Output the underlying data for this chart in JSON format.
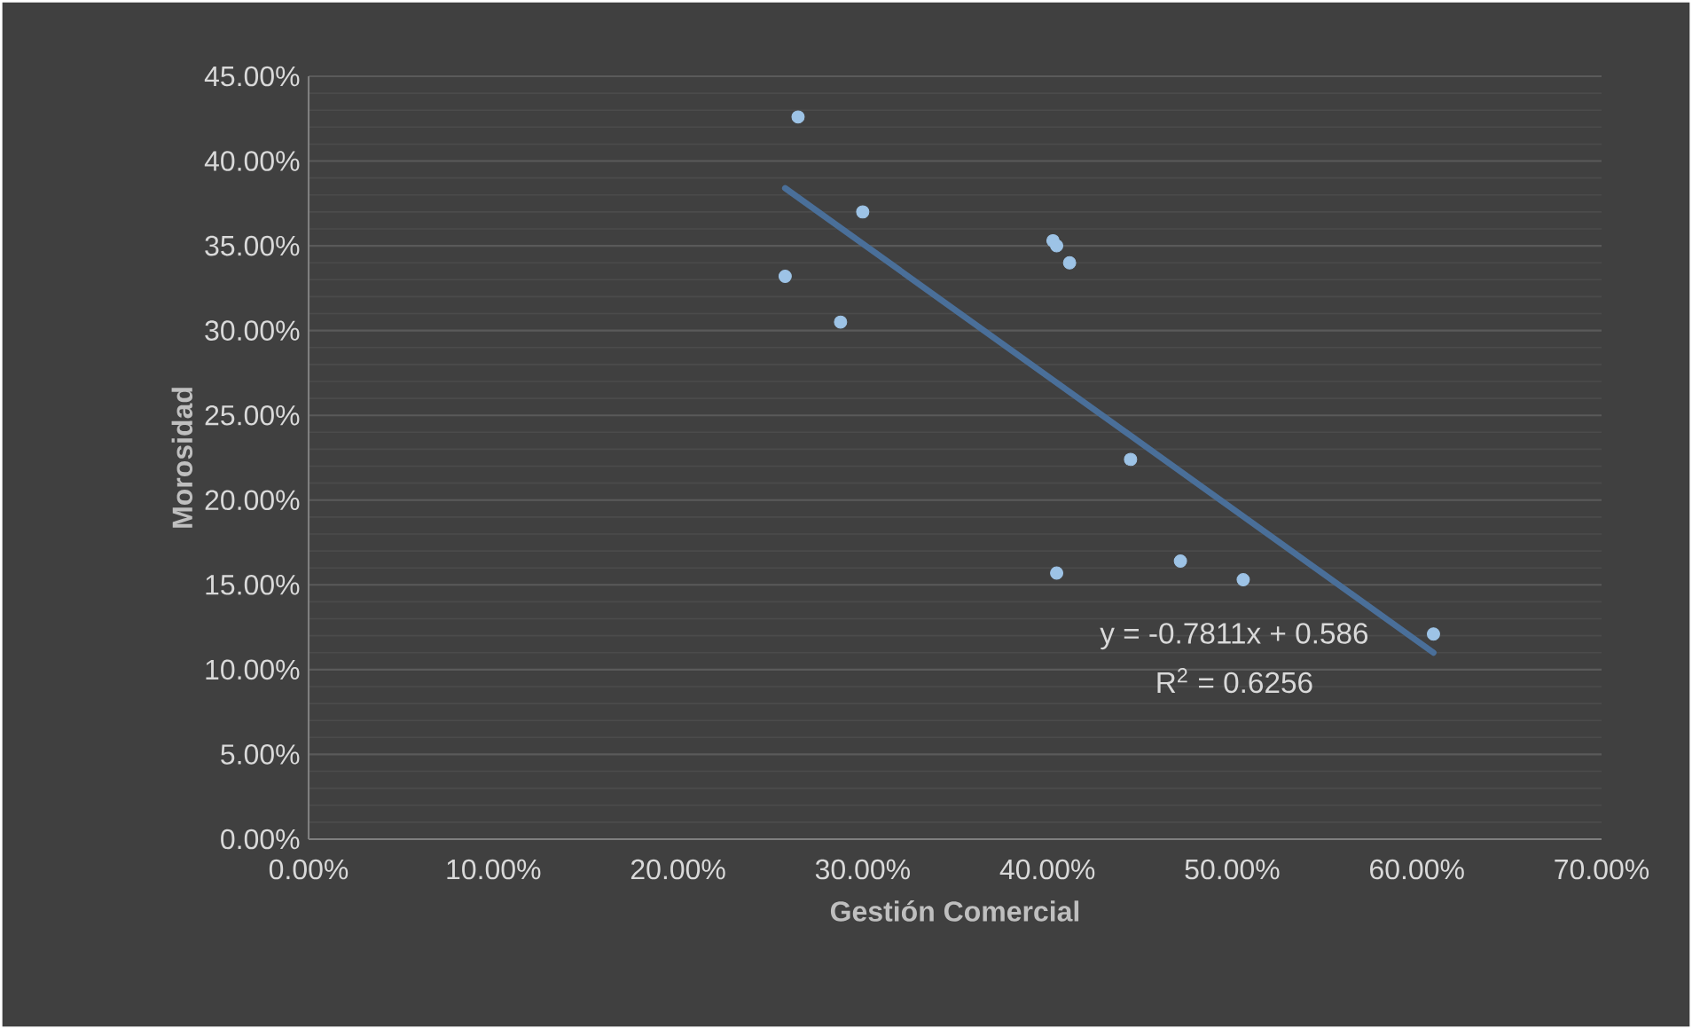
{
  "chart_data": {
    "type": "scatter",
    "xlabel": "Gestión Comercial",
    "ylabel": "Morosidad",
    "xlim": [
      0,
      70
    ],
    "ylim": [
      0,
      45
    ],
    "xticks": [
      {
        "value": 0,
        "label": "0.00%"
      },
      {
        "value": 10,
        "label": "10.00%"
      },
      {
        "value": 20,
        "label": "20.00%"
      },
      {
        "value": 30,
        "label": "30.00%"
      },
      {
        "value": 40,
        "label": "40.00%"
      },
      {
        "value": 50,
        "label": "50.00%"
      },
      {
        "value": 60,
        "label": "60.00%"
      },
      {
        "value": 70,
        "label": "70.00%"
      }
    ],
    "yticks": [
      {
        "value": 0,
        "label": "0.00%"
      },
      {
        "value": 5,
        "label": "5.00%"
      },
      {
        "value": 10,
        "label": "10.00%"
      },
      {
        "value": 15,
        "label": "15.00%"
      },
      {
        "value": 20,
        "label": "20.00%"
      },
      {
        "value": 25,
        "label": "25.00%"
      },
      {
        "value": 30,
        "label": "30.00%"
      },
      {
        "value": 35,
        "label": "35.00%"
      },
      {
        "value": 40,
        "label": "40.00%"
      },
      {
        "value": 45,
        "label": "45.00%"
      }
    ],
    "grid": "y",
    "series": [
      {
        "marker": "circle",
        "color": "#9dc3e6",
        "x": [
          26.5,
          30.0,
          25.8,
          28.8,
          40.3,
          40.5,
          41.2,
          44.5,
          40.5,
          47.2,
          50.6,
          60.9
        ],
        "values": [
          42.6,
          37.0,
          33.2,
          30.5,
          35.3,
          35.0,
          34.0,
          22.4,
          15.7,
          16.4,
          15.3,
          12.1
        ]
      },
      {
        "type": "line",
        "marker": "none",
        "color": "#4a6f99",
        "x": [
          25.8,
          60.9
        ],
        "values": [
          38.4,
          11.0
        ]
      }
    ],
    "annotations": [
      "y = -0.7811x + 0.586",
      "R$^{2}$ = 0.6256"
    ]
  }
}
